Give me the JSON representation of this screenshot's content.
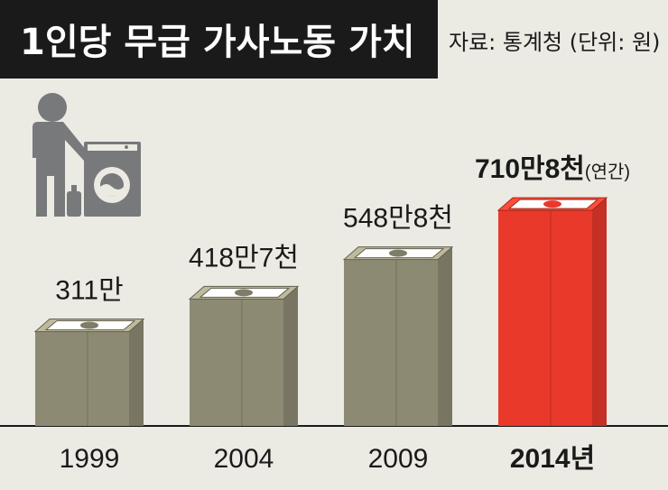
{
  "header": {
    "title": "1인당 무급 가사노동 가치",
    "source": "자료: 통계청 (단위: 원)"
  },
  "colors": {
    "title_bar": "#1a1a1a",
    "background": "#ebeae3",
    "bar_normal": "#8d8a74",
    "bar_highlight": "#e8392b",
    "icon": "#77797b"
  },
  "icons": [
    "person-icon",
    "washing-machine-icon",
    "detergent-bottle-icon",
    "banknote-icon"
  ],
  "chart_data": {
    "type": "bar",
    "title": "1인당 무급 가사노동 가치",
    "categories": [
      "1999",
      "2004",
      "2009",
      "2014년"
    ],
    "values": [
      3110000,
      4187000,
      5488000,
      7108000
    ],
    "value_labels": [
      "311만",
      "418만7천",
      "548만8천",
      "710만8천"
    ],
    "highlight_index": 3,
    "highlight_note": "(연간)",
    "unit": "원",
    "ylim": [
      0,
      7500000
    ],
    "grid": false,
    "legend": "none"
  }
}
